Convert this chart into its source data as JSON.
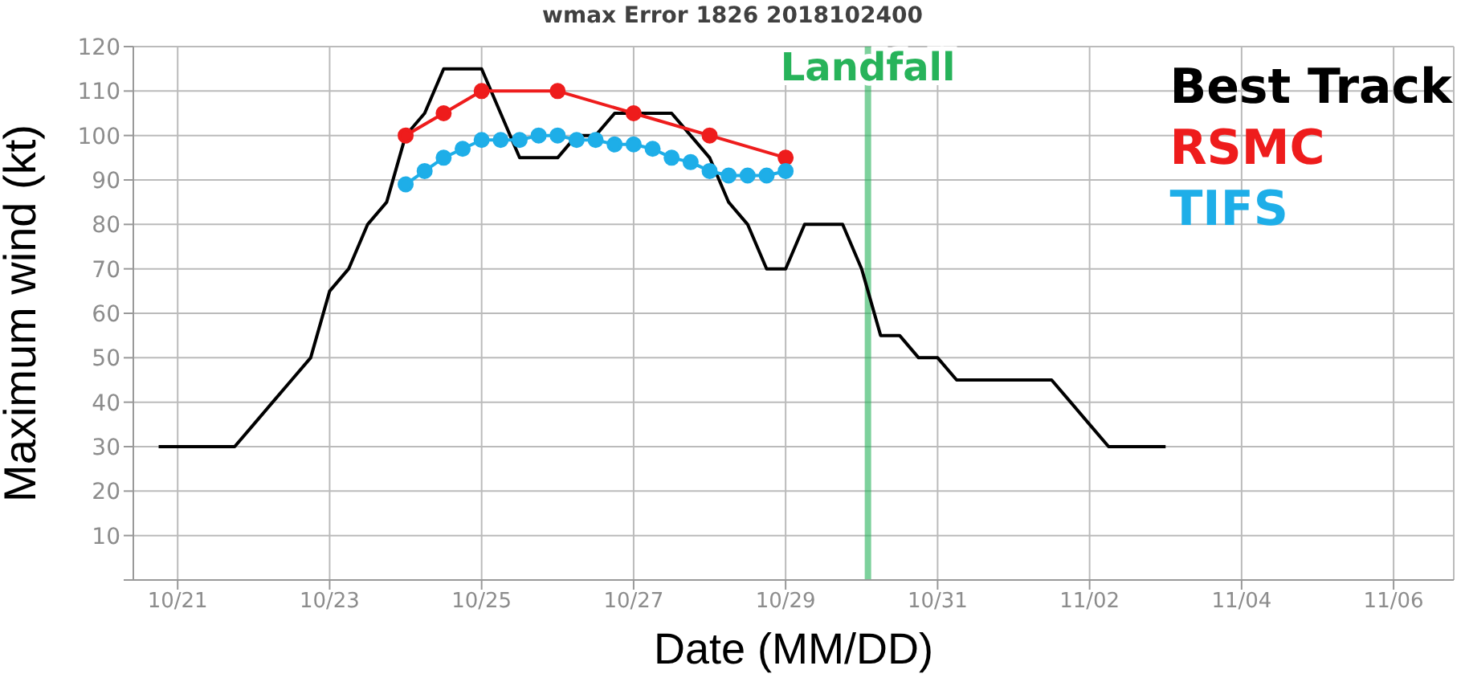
{
  "chart_data": {
    "type": "line",
    "title": "wmax Error 1826 2018102400",
    "xlabel": "Date (MM/DD)",
    "ylabel": "Maximum wind (kt)",
    "xlim": [
      "2018-10-20T10:00",
      "2018-11-06T19:00"
    ],
    "xticks": [
      {
        "value": "2018-10-21",
        "label": "10/21"
      },
      {
        "value": "2018-10-23",
        "label": "10/23"
      },
      {
        "value": "2018-10-25",
        "label": "10/25"
      },
      {
        "value": "2018-10-27",
        "label": "10/27"
      },
      {
        "value": "2018-10-29",
        "label": "10/29"
      },
      {
        "value": "2018-10-31",
        "label": "10/31"
      },
      {
        "value": "2018-11-02",
        "label": "11/02"
      },
      {
        "value": "2018-11-04",
        "label": "11/04"
      },
      {
        "value": "2018-11-06",
        "label": "11/06"
      }
    ],
    "ylim": [
      0,
      120
    ],
    "yticks": [
      {
        "value": 0,
        "label": null
      },
      10,
      20,
      30,
      40,
      50,
      60,
      70,
      80,
      90,
      100,
      110,
      120
    ],
    "grid": true,
    "legend": "top right",
    "line_style": "solid",
    "ref_lines": [
      {
        "axis": "x",
        "value": "2018-10-30T02:00",
        "label": "Landfall",
        "color": "#27b35a"
      }
    ],
    "series": [
      {
        "name": "Best Track",
        "color": "#000000",
        "marker": "none",
        "x": [
          "2018-10-20T18:00",
          "2018-10-21T00:00",
          "2018-10-21T06:00",
          "2018-10-21T12:00",
          "2018-10-21T18:00",
          "2018-10-22T00:00",
          "2018-10-22T06:00",
          "2018-10-22T12:00",
          "2018-10-22T18:00",
          "2018-10-23T00:00",
          "2018-10-23T06:00",
          "2018-10-23T12:00",
          "2018-10-23T18:00",
          "2018-10-24T00:00",
          "2018-10-24T06:00",
          "2018-10-24T12:00",
          "2018-10-24T18:00",
          "2018-10-25T00:00",
          "2018-10-25T06:00",
          "2018-10-25T12:00",
          "2018-10-25T18:00",
          "2018-10-26T00:00",
          "2018-10-26T06:00",
          "2018-10-26T12:00",
          "2018-10-26T18:00",
          "2018-10-27T00:00",
          "2018-10-27T06:00",
          "2018-10-27T12:00",
          "2018-10-27T18:00",
          "2018-10-28T00:00",
          "2018-10-28T06:00",
          "2018-10-28T12:00",
          "2018-10-28T18:00",
          "2018-10-29T00:00",
          "2018-10-29T06:00",
          "2018-10-29T12:00",
          "2018-10-29T18:00",
          "2018-10-30T00:00",
          "2018-10-30T06:00",
          "2018-10-30T12:00",
          "2018-10-30T18:00",
          "2018-10-31T00:00",
          "2018-10-31T06:00",
          "2018-10-31T12:00",
          "2018-10-31T18:00",
          "2018-11-01T00:00",
          "2018-11-01T06:00",
          "2018-11-01T12:00",
          "2018-11-01T18:00",
          "2018-11-02T00:00",
          "2018-11-02T06:00",
          "2018-11-02T12:00",
          "2018-11-02T18:00",
          "2018-11-03T00:00"
        ],
        "values": [
          30,
          30,
          30,
          30,
          30,
          35,
          40,
          45,
          50,
          65,
          70,
          80,
          85,
          100,
          105,
          115,
          115,
          115,
          105,
          95,
          95,
          95,
          100,
          100,
          105,
          105,
          105,
          105,
          100,
          95,
          85,
          80,
          70,
          70,
          80,
          80,
          80,
          70,
          55,
          55,
          50,
          50,
          45,
          45,
          45,
          45,
          45,
          45,
          40,
          35,
          30,
          30,
          30,
          30
        ]
      },
      {
        "name": "RSMC",
        "color": "#ee1c1c",
        "marker": "circle",
        "x": [
          "2018-10-24T00:00",
          "2018-10-24T12:00",
          "2018-10-25T00:00",
          "2018-10-26T00:00",
          "2018-10-27T00:00",
          "2018-10-28T00:00",
          "2018-10-29T00:00"
        ],
        "values": [
          100,
          105,
          110,
          110,
          105,
          100,
          95
        ]
      },
      {
        "name": "TIFS",
        "color": "#1eaee8",
        "marker": "circle",
        "x": [
          "2018-10-24T00:00",
          "2018-10-24T06:00",
          "2018-10-24T12:00",
          "2018-10-24T18:00",
          "2018-10-25T00:00",
          "2018-10-25T06:00",
          "2018-10-25T12:00",
          "2018-10-25T18:00",
          "2018-10-26T00:00",
          "2018-10-26T06:00",
          "2018-10-26T12:00",
          "2018-10-26T18:00",
          "2018-10-27T00:00",
          "2018-10-27T06:00",
          "2018-10-27T12:00",
          "2018-10-27T18:00",
          "2018-10-28T00:00",
          "2018-10-28T06:00",
          "2018-10-28T12:00",
          "2018-10-28T18:00",
          "2018-10-29T00:00"
        ],
        "values": [
          89,
          92,
          95,
          97,
          99,
          99,
          99,
          100,
          100,
          99,
          99,
          98,
          98,
          97,
          95,
          94,
          92,
          91,
          91,
          91,
          92
        ]
      }
    ]
  }
}
